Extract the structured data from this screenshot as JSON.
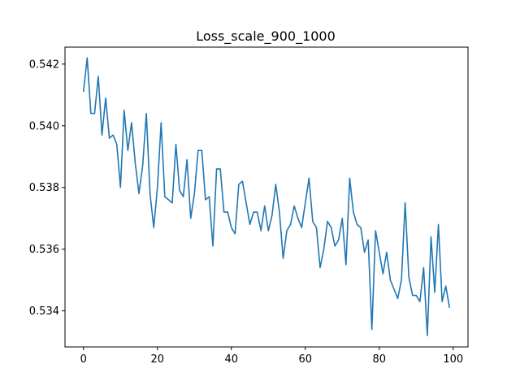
{
  "chart_data": {
    "type": "line",
    "title": "Loss_scale_900_1000",
    "xlabel": "",
    "ylabel": "",
    "xlim": [
      -5,
      104
    ],
    "ylim": [
      0.53283,
      0.54255
    ],
    "x_ticks": [
      0,
      20,
      40,
      60,
      80,
      100
    ],
    "x_tick_labels": [
      "0",
      "20",
      "40",
      "60",
      "80",
      "100"
    ],
    "y_ticks": [
      0.534,
      0.536,
      0.538,
      0.54,
      0.542
    ],
    "y_tick_labels": [
      "0.534",
      "0.536",
      "0.538",
      "0.540",
      "0.542"
    ],
    "grid": false,
    "legend": "none",
    "series": [
      {
        "color": "#1f77b4",
        "x": [
          0,
          1,
          2,
          3,
          4,
          5,
          6,
          7,
          8,
          9,
          10,
          11,
          12,
          13,
          14,
          15,
          16,
          17,
          18,
          19,
          20,
          21,
          22,
          23,
          24,
          25,
          26,
          27,
          28,
          29,
          30,
          31,
          32,
          33,
          34,
          35,
          36,
          37,
          38,
          39,
          40,
          41,
          42,
          43,
          44,
          45,
          46,
          47,
          48,
          49,
          50,
          51,
          52,
          53,
          54,
          55,
          56,
          57,
          58,
          59,
          60,
          61,
          62,
          63,
          64,
          65,
          66,
          67,
          68,
          69,
          70,
          71,
          72,
          73,
          74,
          75,
          76,
          77,
          78,
          79,
          80,
          81,
          82,
          83,
          84,
          85,
          86,
          87,
          88,
          89,
          90,
          91,
          92,
          93,
          94,
          95,
          96,
          97,
          98,
          99
        ],
        "values": [
          0.5411,
          0.5422,
          0.5404,
          0.5404,
          0.5416,
          0.5397,
          0.5409,
          0.5396,
          0.5397,
          0.5394,
          0.538,
          0.5405,
          0.5392,
          0.5401,
          0.5388,
          0.5378,
          0.5387,
          0.5404,
          0.5378,
          0.5367,
          0.538,
          0.5401,
          0.5377,
          0.5376,
          0.5375,
          0.5394,
          0.5379,
          0.5377,
          0.5389,
          0.537,
          0.5378,
          0.5392,
          0.5392,
          0.5376,
          0.5377,
          0.5361,
          0.5386,
          0.5386,
          0.5372,
          0.5372,
          0.5367,
          0.5365,
          0.5381,
          0.5382,
          0.5375,
          0.5368,
          0.5372,
          0.5372,
          0.5366,
          0.5374,
          0.5366,
          0.5371,
          0.5381,
          0.5372,
          0.5357,
          0.5366,
          0.5368,
          0.5374,
          0.537,
          0.5367,
          0.5375,
          0.5383,
          0.5369,
          0.5367,
          0.5354,
          0.536,
          0.5369,
          0.5367,
          0.5361,
          0.5363,
          0.537,
          0.5355,
          0.5383,
          0.5372,
          0.5368,
          0.5367,
          0.5359,
          0.5363,
          0.5334,
          0.5366,
          0.5359,
          0.5352,
          0.5359,
          0.535,
          0.5347,
          0.5344,
          0.535,
          0.5375,
          0.5351,
          0.5345,
          0.5345,
          0.5343,
          0.5354,
          0.5332,
          0.5364,
          0.5346,
          0.5368,
          0.5343,
          0.5348,
          0.5341
        ]
      }
    ]
  }
}
